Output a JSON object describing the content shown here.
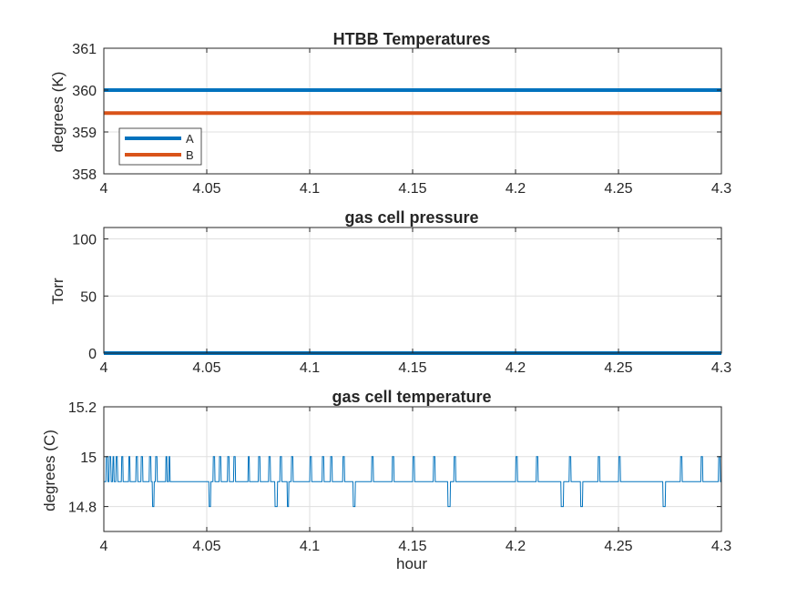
{
  "chart_data": [
    {
      "type": "line",
      "title": "HTBB Temperatures",
      "xlabel": "",
      "ylabel": "degrees (K)",
      "xlim": [
        4,
        4.3
      ],
      "ylim": [
        358,
        361
      ],
      "x_ticks": [
        "4",
        "4.05",
        "4.1",
        "4.15",
        "4.2",
        "4.25",
        "4.3"
      ],
      "y_ticks": [
        "358",
        "359",
        "360",
        "361"
      ],
      "grid": true,
      "legend_position": "bottom-left",
      "series": [
        {
          "name": "A",
          "color": "#0072BD",
          "x": [
            4,
            4.3
          ],
          "y": [
            360.0,
            360.0
          ]
        },
        {
          "name": "B",
          "color": "#D95319",
          "x": [
            4,
            4.3
          ],
          "y": [
            359.45,
            359.45
          ]
        }
      ]
    },
    {
      "type": "line",
      "title": "gas cell pressure",
      "xlabel": "",
      "ylabel": "Torr",
      "xlim": [
        4,
        4.3
      ],
      "ylim": [
        0,
        110
      ],
      "x_ticks": [
        "4",
        "4.05",
        "4.1",
        "4.15",
        "4.2",
        "4.25",
        "4.3"
      ],
      "y_ticks": [
        "0",
        "50",
        "100"
      ],
      "grid": true,
      "series": [
        {
          "color": "#0072BD",
          "x": [
            4,
            4.3
          ],
          "y": [
            0,
            0
          ]
        }
      ]
    },
    {
      "type": "line",
      "title": "gas cell temperature",
      "xlabel": "hour",
      "ylabel": "degrees (C)",
      "xlim": [
        4,
        4.3
      ],
      "ylim": [
        14.7,
        15.2
      ],
      "x_ticks": [
        "4",
        "4.05",
        "4.1",
        "4.15",
        "4.2",
        "4.25",
        "4.3"
      ],
      "y_ticks": [
        "14.8",
        "15",
        "15.2"
      ],
      "grid": true,
      "series": [
        {
          "color": "#0072BD",
          "x": [
            4.0,
            4.001,
            4.0012,
            4.0018,
            4.002,
            4.0025,
            4.0027,
            4.0033,
            4.0036,
            4.0042,
            4.0045,
            4.0048,
            4.005,
            4.0058,
            4.006,
            4.0065,
            4.0068,
            4.0085,
            4.0087,
            4.0092,
            4.0094,
            4.012,
            4.0122,
            4.0126,
            4.0128,
            4.0155,
            4.0157,
            4.0163,
            4.0165,
            4.018,
            4.0182,
            4.0188,
            4.019,
            4.022,
            4.0222,
            4.0228,
            4.023,
            4.0235,
            4.0237,
            4.0243,
            4.0245,
            4.025,
            4.0252,
            4.0258,
            4.026,
            4.03,
            4.0302,
            4.0306,
            4.0308,
            4.0315,
            4.0317,
            4.032,
            4.0322,
            4.051,
            4.0512,
            4.0518,
            4.052,
            4.053,
            4.0532,
            4.0538,
            4.054,
            4.056,
            4.0562,
            4.0568,
            4.057,
            4.06,
            4.0602,
            4.0608,
            4.061,
            4.063,
            4.0632,
            4.0638,
            4.064,
            4.07,
            4.0702,
            4.0706,
            4.0708,
            4.075,
            4.0752,
            4.0758,
            4.076,
            4.08,
            4.0802,
            4.0808,
            4.081,
            4.083,
            4.0832,
            4.0842,
            4.0844,
            4.0855,
            4.0857,
            4.0863,
            4.0865,
            4.089,
            4.0892,
            4.0897,
            4.0899,
            4.091,
            4.0912,
            4.0918,
            4.092,
            4.1,
            4.1002,
            4.1008,
            4.101,
            4.106,
            4.1062,
            4.1068,
            4.107,
            4.11,
            4.1102,
            4.1108,
            4.111,
            4.116,
            4.1162,
            4.1168,
            4.117,
            4.121,
            4.1212,
            4.122,
            4.1222,
            4.13,
            4.1302,
            4.1308,
            4.131,
            4.14,
            4.1402,
            4.1408,
            4.141,
            4.15,
            4.1502,
            4.1508,
            4.151,
            4.16,
            4.1602,
            4.1608,
            4.161,
            4.167,
            4.1672,
            4.1682,
            4.1684,
            4.17,
            4.1702,
            4.1708,
            4.171,
            4.2,
            4.2002,
            4.2008,
            4.201,
            4.21,
            4.2102,
            4.2108,
            4.211,
            4.222,
            4.2222,
            4.2232,
            4.2234,
            4.226,
            4.2262,
            4.2268,
            4.227,
            4.2315,
            4.2317,
            4.2325,
            4.2327,
            4.24,
            4.2402,
            4.2408,
            4.241,
            4.25,
            4.2502,
            4.2508,
            4.251,
            4.2715,
            4.2717,
            4.2727,
            4.2729,
            4.28,
            4.2802,
            4.2808,
            4.281,
            4.29,
            4.2902,
            4.2908,
            4.291,
            4.2985,
            4.2987,
            4.2993,
            4.2995,
            4.3
          ],
          "y": [
            14.9,
            14.9,
            15.0,
            15.0,
            14.9,
            14.9,
            15.0,
            15.0,
            14.9,
            14.9,
            15.0,
            15.0,
            14.9,
            14.9,
            15.0,
            15.0,
            14.9,
            14.9,
            15.0,
            15.0,
            14.9,
            14.9,
            15.0,
            15.0,
            14.9,
            14.9,
            15.0,
            15.0,
            14.9,
            14.9,
            15.0,
            15.0,
            14.9,
            14.9,
            15.0,
            15.0,
            14.9,
            14.9,
            14.8,
            14.8,
            14.9,
            14.9,
            15.0,
            15.0,
            14.9,
            14.9,
            15.0,
            15.0,
            14.9,
            14.9,
            15.0,
            15.0,
            14.9,
            14.9,
            14.8,
            14.8,
            14.9,
            14.9,
            15.0,
            15.0,
            14.9,
            14.9,
            15.0,
            15.0,
            14.9,
            14.9,
            15.0,
            15.0,
            14.9,
            14.9,
            15.0,
            15.0,
            14.9,
            14.9,
            15.0,
            15.0,
            14.9,
            14.9,
            15.0,
            15.0,
            14.9,
            14.9,
            15.0,
            15.0,
            14.9,
            14.9,
            14.8,
            14.8,
            14.9,
            14.9,
            15.0,
            15.0,
            14.9,
            14.9,
            14.8,
            14.8,
            14.9,
            14.9,
            15.0,
            15.0,
            14.9,
            14.9,
            15.0,
            15.0,
            14.9,
            14.9,
            15.0,
            15.0,
            14.9,
            14.9,
            15.0,
            15.0,
            14.9,
            14.9,
            15.0,
            15.0,
            14.9,
            14.9,
            14.8,
            14.8,
            14.9,
            14.9,
            15.0,
            15.0,
            14.9,
            14.9,
            15.0,
            15.0,
            14.9,
            14.9,
            15.0,
            15.0,
            14.9,
            14.9,
            15.0,
            15.0,
            14.9,
            14.9,
            14.8,
            14.8,
            14.9,
            14.9,
            15.0,
            15.0,
            14.9,
            14.9,
            15.0,
            15.0,
            14.9,
            14.9,
            15.0,
            15.0,
            14.9,
            14.9,
            14.8,
            14.8,
            14.9,
            14.9,
            15.0,
            15.0,
            14.9,
            14.9,
            14.8,
            14.8,
            14.9,
            14.9,
            15.0,
            15.0,
            14.9,
            14.9,
            15.0,
            15.0,
            14.9,
            14.9,
            14.8,
            14.8,
            14.9,
            14.9,
            15.0,
            15.0,
            14.9,
            14.9,
            15.0,
            15.0,
            14.9,
            14.9,
            15.0,
            15.0,
            14.9,
            14.9
          ]
        }
      ]
    }
  ]
}
